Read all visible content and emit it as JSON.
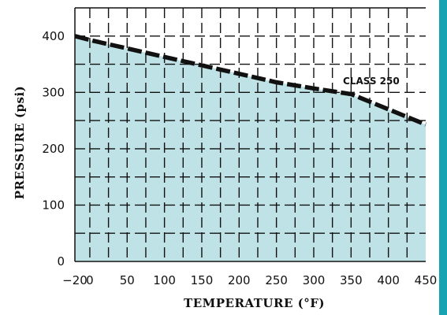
{
  "chart_data": {
    "type": "area",
    "xlabel": "TEMPERATURE  (°F)",
    "ylabel": "PRESSURE  (psi)",
    "xlim": [
      -20,
      450
    ],
    "ylim": [
      0,
      450
    ],
    "x_ticks": [
      -20,
      0,
      50,
      100,
      150,
      200,
      250,
      300,
      350,
      400,
      450
    ],
    "x_tick_labels": [
      "−20",
      "0",
      "50",
      "100",
      "150",
      "200",
      "250",
      "300",
      "350",
      "400",
      "450"
    ],
    "y_ticks": [
      0,
      100,
      200,
      300,
      400
    ],
    "y_tick_labels": [
      "0",
      "100",
      "200",
      "300",
      "400"
    ],
    "grid": true,
    "series": [
      {
        "name": "CLASS 250",
        "x": [
          -20,
          0,
          50,
          100,
          150,
          200,
          250,
          300,
          350,
          400,
          450
        ],
        "y": [
          400,
          393,
          378,
          363,
          348,
          333,
          318,
          307,
          297,
          270,
          243
        ]
      }
    ],
    "fill_color": "#bfe2e6",
    "line_color": "#111111",
    "accent_color": "#17a3b1"
  }
}
